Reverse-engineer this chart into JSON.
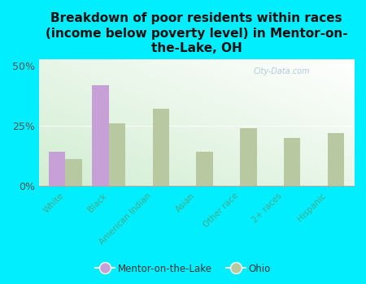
{
  "title": "Breakdown of poor residents within races\n(income below poverty level) in Mentor-on-\nthe-Lake, OH",
  "categories": [
    "White",
    "Black",
    "American Indian",
    "Asian",
    "Other race",
    "2+ races",
    "Hispanic"
  ],
  "mentor_values": [
    14,
    42,
    0,
    0,
    0,
    0,
    0
  ],
  "ohio_values": [
    11,
    26,
    32,
    14,
    24,
    20,
    22
  ],
  "mentor_color": "#c8a0d8",
  "ohio_color": "#b8c8a0",
  "background_color": "#00eeff",
  "ylim": [
    0,
    53
  ],
  "yticks": [
    0,
    25,
    50
  ],
  "ytick_labels": [
    "0%",
    "25%",
    "50%"
  ],
  "bar_width": 0.38,
  "watermark": "City-Data.com",
  "legend_mentor": "Mentor-on-the-Lake",
  "legend_ohio": "Ohio",
  "title_fontsize": 11,
  "axis_label_color": "#44aa88",
  "plot_bg_left": "#c8e8c0",
  "plot_bg_right": "#f0f8f0"
}
